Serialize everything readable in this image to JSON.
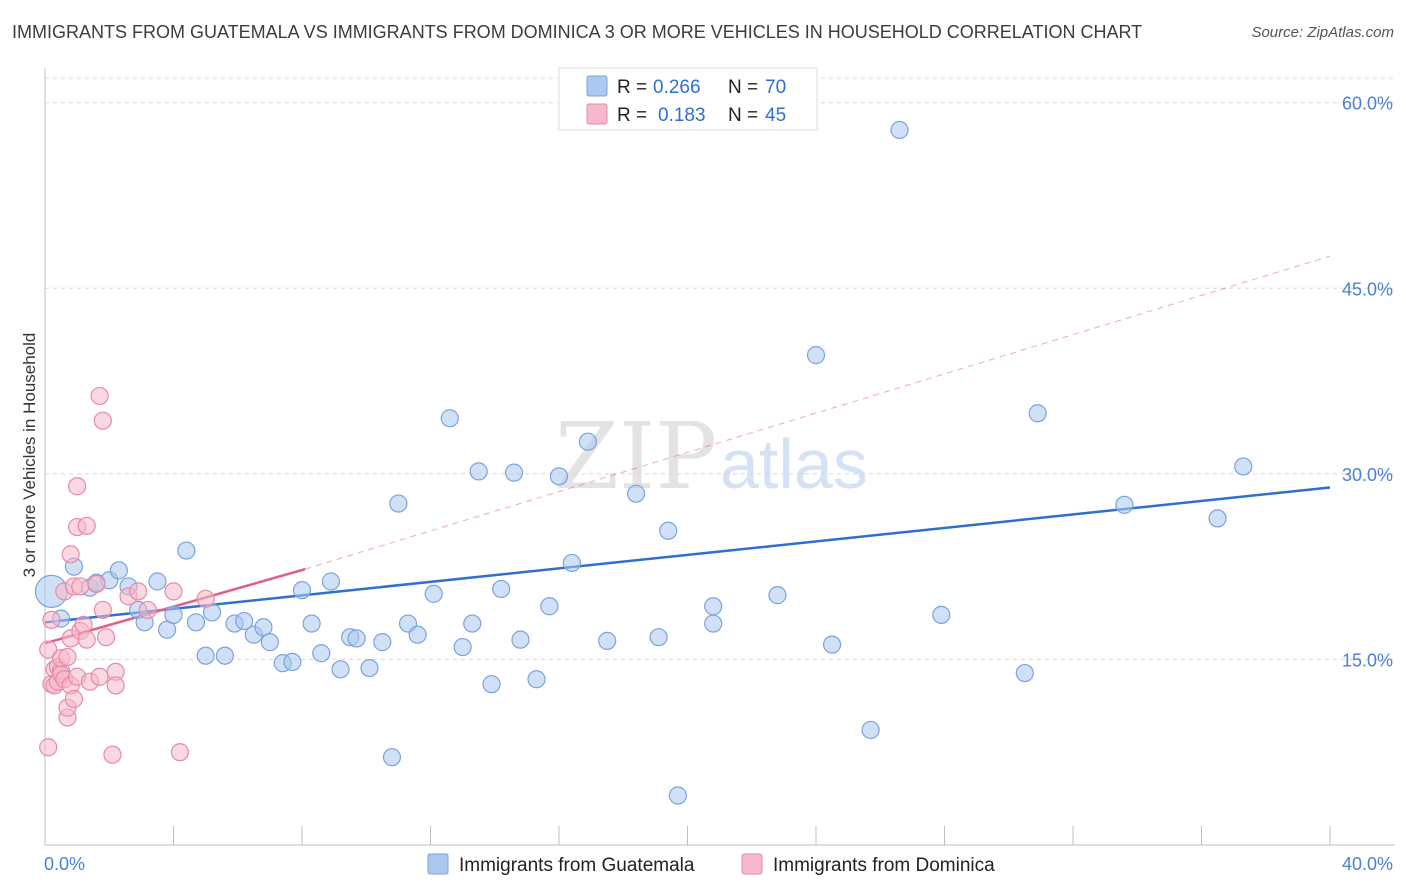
{
  "title": "IMMIGRANTS FROM GUATEMALA VS IMMIGRANTS FROM DOMINICA 3 OR MORE VEHICLES IN HOUSEHOLD CORRELATION CHART",
  "source": "Source: ZipAtlas.com",
  "watermark": {
    "zip": "ZIP",
    "atlas": "atlas"
  },
  "colors": {
    "guatemala_fill": "#aac8f0",
    "guatemala_stroke": "#7aa3dd",
    "guatemala_line": "#2f6fcf",
    "dominica_fill": "#f6b8cb",
    "dominica_stroke": "#e88aa6",
    "dominica_line": "#e0608a",
    "grid": "#d8d8d8",
    "tick_label": "#4a7fd6"
  },
  "legend": {
    "rows": [
      {
        "r_label": "R = ",
        "r_value": "0.266",
        "n_label": "N = ",
        "n_value": "70"
      },
      {
        "r_label": "R = ",
        "r_value": "0.183",
        "n_label": "N = ",
        "n_value": "45"
      }
    ]
  },
  "chart_data": {
    "type": "scatter",
    "xlabel": "",
    "ylabel": "3 or more Vehicles in Household",
    "xlim": [
      0,
      40
    ],
    "ylim": [
      0,
      62
    ],
    "x_tick_labels": [
      "0.0%",
      "40.0%"
    ],
    "y_ticks": [
      15,
      30,
      45,
      60
    ],
    "y_tick_labels": [
      "15.0%",
      "30.0%",
      "45.0%",
      "60.0%"
    ],
    "grid": true,
    "legend_position": "top-center",
    "series": [
      {
        "name": "Immigrants from Guatemala",
        "color": "#aac8f0",
        "trend": {
          "x": [
            0,
            40
          ],
          "y": [
            18.0,
            28.9
          ],
          "style": "solid"
        },
        "points": [
          [
            0.2,
            20.5
          ],
          [
            0.5,
            18.3
          ],
          [
            0.9,
            22.5
          ],
          [
            1.4,
            20.8
          ],
          [
            1.6,
            21.2
          ],
          [
            2.0,
            21.4
          ],
          [
            2.3,
            22.2
          ],
          [
            2.6,
            20.9
          ],
          [
            2.9,
            19.0
          ],
          [
            3.1,
            18.0
          ],
          [
            3.5,
            21.3
          ],
          [
            3.8,
            17.4
          ],
          [
            4.0,
            18.6
          ],
          [
            4.4,
            23.8
          ],
          [
            4.7,
            18.0
          ],
          [
            5.0,
            15.3
          ],
          [
            5.2,
            18.8
          ],
          [
            5.6,
            15.3
          ],
          [
            5.9,
            17.9
          ],
          [
            6.2,
            18.1
          ],
          [
            6.5,
            17.0
          ],
          [
            6.8,
            17.6
          ],
          [
            7.0,
            16.4
          ],
          [
            7.4,
            14.7
          ],
          [
            7.7,
            14.8
          ],
          [
            8.0,
            20.6
          ],
          [
            8.3,
            17.9
          ],
          [
            8.6,
            15.5
          ],
          [
            8.9,
            21.3
          ],
          [
            9.2,
            14.2
          ],
          [
            9.5,
            16.8
          ],
          [
            9.7,
            16.7
          ],
          [
            10.1,
            14.3
          ],
          [
            10.5,
            16.4
          ],
          [
            10.8,
            7.1
          ],
          [
            11.0,
            27.6
          ],
          [
            11.3,
            17.9
          ],
          [
            11.6,
            17.0
          ],
          [
            12.1,
            20.3
          ],
          [
            12.6,
            34.5
          ],
          [
            13.0,
            16.0
          ],
          [
            13.3,
            17.9
          ],
          [
            13.5,
            30.2
          ],
          [
            13.9,
            13.0
          ],
          [
            14.2,
            20.7
          ],
          [
            14.6,
            30.1
          ],
          [
            14.8,
            16.6
          ],
          [
            15.3,
            13.4
          ],
          [
            15.7,
            19.3
          ],
          [
            16.0,
            29.8
          ],
          [
            16.4,
            22.8
          ],
          [
            16.9,
            32.6
          ],
          [
            17.5,
            16.5
          ],
          [
            18.4,
            28.4
          ],
          [
            19.1,
            16.8
          ],
          [
            19.4,
            25.4
          ],
          [
            19.7,
            4.0
          ],
          [
            20.8,
            17.9
          ],
          [
            20.8,
            19.3
          ],
          [
            22.8,
            20.2
          ],
          [
            24.0,
            39.6
          ],
          [
            25.7,
            9.3
          ],
          [
            26.6,
            57.8
          ],
          [
            30.5,
            13.9
          ],
          [
            30.9,
            34.9
          ],
          [
            33.6,
            27.5
          ],
          [
            36.5,
            26.4
          ],
          [
            37.3,
            30.6
          ],
          [
            24.5,
            16.2
          ],
          [
            27.9,
            18.6
          ]
        ]
      },
      {
        "name": "Immigrants from Dominica",
        "color": "#f6b8cb",
        "trend": {
          "x": [
            0,
            8.1
          ],
          "y": [
            16.3,
            22.3
          ],
          "style": "solid",
          "extension": {
            "x": [
              8.1,
              40
            ],
            "y": [
              22.3,
              47.6
            ],
            "style": "dashed"
          }
        },
        "points": [
          [
            0.1,
            7.9
          ],
          [
            0.1,
            15.8
          ],
          [
            0.2,
            18.2
          ],
          [
            0.2,
            13.0
          ],
          [
            0.3,
            14.2
          ],
          [
            0.3,
            12.9
          ],
          [
            0.4,
            14.4
          ],
          [
            0.4,
            13.2
          ],
          [
            0.5,
            14.1
          ],
          [
            0.5,
            13.8
          ],
          [
            0.5,
            15.1
          ],
          [
            0.6,
            20.5
          ],
          [
            0.6,
            13.4
          ],
          [
            0.7,
            15.2
          ],
          [
            0.7,
            10.3
          ],
          [
            0.7,
            11.1
          ],
          [
            0.8,
            16.7
          ],
          [
            0.8,
            23.5
          ],
          [
            0.8,
            12.9
          ],
          [
            0.9,
            20.9
          ],
          [
            0.9,
            11.8
          ],
          [
            1.0,
            25.7
          ],
          [
            1.0,
            29.0
          ],
          [
            1.0,
            13.6
          ],
          [
            1.1,
            17.3
          ],
          [
            1.1,
            20.9
          ],
          [
            1.2,
            17.8
          ],
          [
            1.3,
            16.6
          ],
          [
            1.3,
            25.8
          ],
          [
            1.4,
            13.2
          ],
          [
            1.6,
            21.1
          ],
          [
            1.7,
            13.6
          ],
          [
            1.7,
            36.3
          ],
          [
            1.8,
            34.3
          ],
          [
            1.8,
            19.0
          ],
          [
            1.9,
            16.8
          ],
          [
            2.1,
            7.3
          ],
          [
            2.2,
            14.0
          ],
          [
            2.2,
            12.9
          ],
          [
            2.6,
            20.1
          ],
          [
            2.9,
            20.5
          ],
          [
            3.2,
            19.0
          ],
          [
            4.0,
            20.5
          ],
          [
            4.2,
            7.5
          ],
          [
            5.0,
            19.9
          ]
        ]
      }
    ]
  },
  "bottom_legend": [
    {
      "label": "Immigrants from Guatemala"
    },
    {
      "label": "Immigrants from Dominica"
    }
  ]
}
